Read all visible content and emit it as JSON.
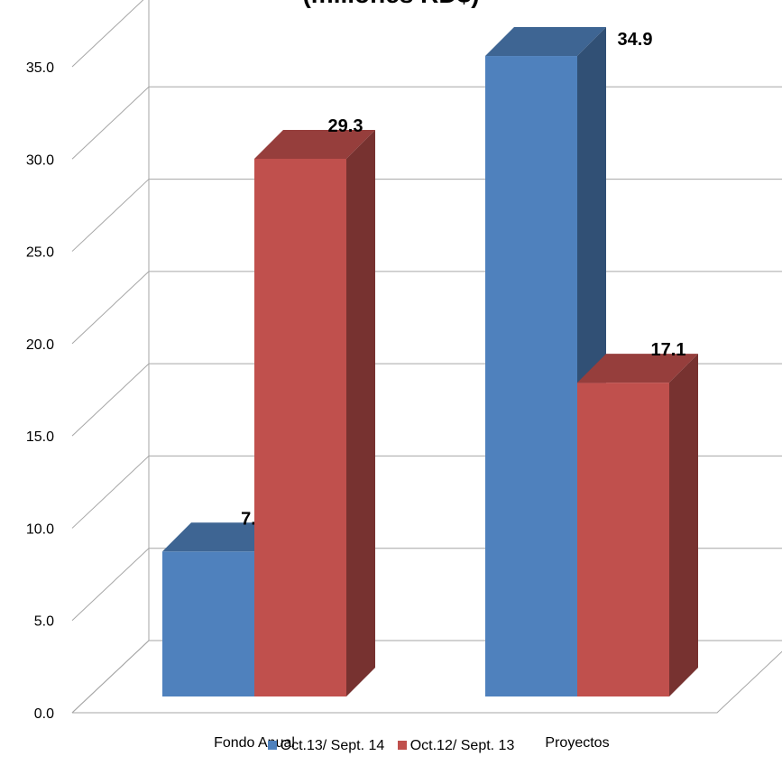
{
  "chart_data": {
    "type": "bar",
    "title": "(millones RD$)",
    "categories": [
      "Fondo Anual",
      "Proyectos"
    ],
    "series": [
      {
        "name": "Oct.13/ Sept. 14",
        "values": [
          7.9,
          34.9
        ],
        "color": "#4F81BD"
      },
      {
        "name": "Oct.12/ Sept. 13",
        "values": [
          29.3,
          17.1
        ],
        "color": "#C0504D"
      }
    ],
    "ylim": [
      0,
      35
    ],
    "yticks": [
      "0.0",
      "5.0",
      "10.0",
      "15.0",
      "20.0",
      "25.0",
      "30.0",
      "35.0"
    ],
    "grid": true,
    "style": "3d-column",
    "legend_position": "bottom"
  }
}
